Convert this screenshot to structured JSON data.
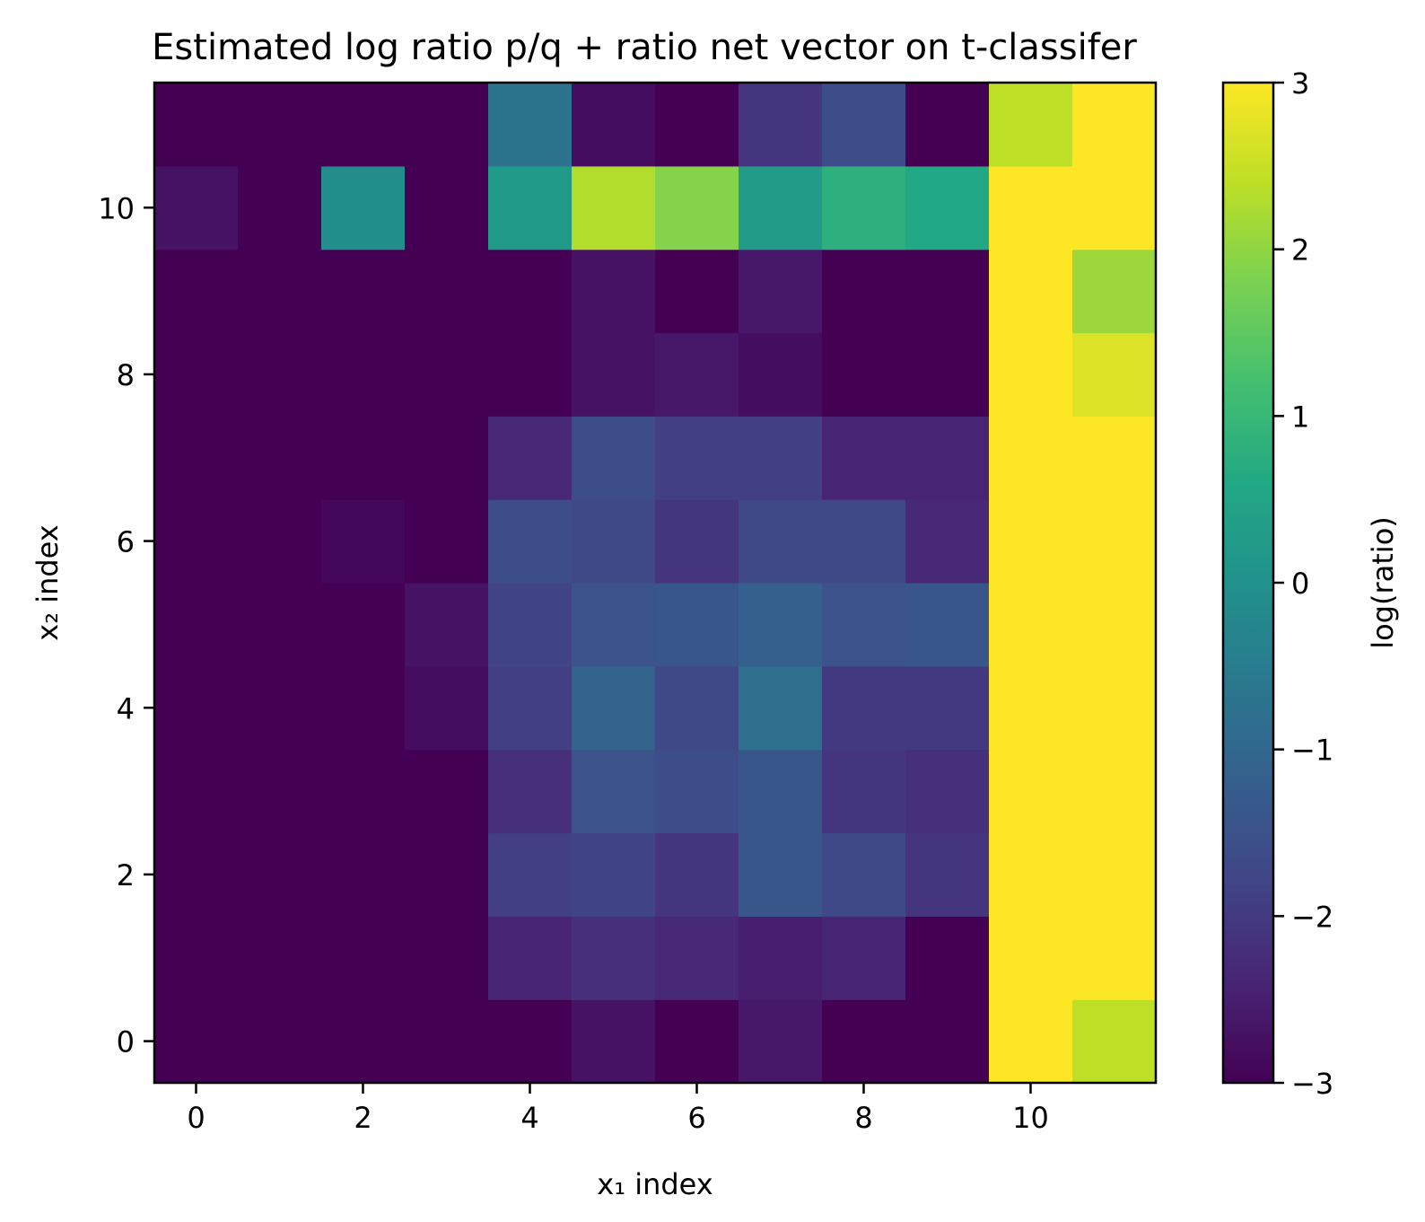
{
  "chart_data": {
    "type": "heatmap",
    "title": "Estimated log ratio p/q + ratio net vector on t-classifer",
    "xlabel": "x₁ index",
    "ylabel": "x₂ index",
    "colorbar_label": "log(ratio)",
    "colormap": "viridis",
    "vmin": -3,
    "vmax": 3,
    "x": [
      0,
      1,
      2,
      3,
      4,
      5,
      6,
      7,
      8,
      9,
      10,
      11
    ],
    "y": [
      0,
      1,
      2,
      3,
      4,
      5,
      6,
      7,
      8,
      9,
      10,
      11
    ],
    "xlim": [
      -0.5,
      11.5
    ],
    "ylim": [
      -0.5,
      11.5
    ],
    "x_ticks": [
      0,
      2,
      4,
      6,
      8,
      10
    ],
    "y_ticks": [
      0,
      2,
      4,
      6,
      8,
      10
    ],
    "colorbar_ticks": [
      -3,
      -2,
      -1,
      0,
      1,
      2,
      3
    ],
    "colorbar_tick_labels": [
      "−3",
      "−2",
      "−1",
      "0",
      "1",
      "2",
      "3"
    ],
    "z": [
      [
        -3,
        -3,
        -3,
        -3,
        -3,
        -2.7,
        -3,
        -2.6,
        -3,
        -3,
        3,
        2.4
      ],
      [
        -3,
        -3,
        -3,
        -3,
        -2.4,
        -2.2,
        -2.3,
        -2.5,
        -2.4,
        -3,
        3,
        3
      ],
      [
        -3,
        -3,
        -3,
        -3,
        -1.9,
        -1.8,
        -2.1,
        -1.4,
        -1.7,
        -2.1,
        3,
        3
      ],
      [
        -3,
        -3,
        -3,
        -3,
        -2.2,
        -1.5,
        -1.6,
        -1.4,
        -2.1,
        -2.2,
        3,
        3
      ],
      [
        -3,
        -3,
        -3,
        -2.8,
        -1.9,
        -1.1,
        -1.7,
        -0.8,
        -2.0,
        -2.0,
        3,
        3
      ],
      [
        -3,
        -3,
        -3,
        -2.7,
        -1.8,
        -1.5,
        -1.4,
        -1.2,
        -1.5,
        -1.4,
        3,
        3
      ],
      [
        -3,
        -3,
        -2.9,
        -3,
        -1.6,
        -1.7,
        -2.1,
        -1.7,
        -1.7,
        -2.3,
        3,
        3
      ],
      [
        -3,
        -3,
        -3,
        -3,
        -2.3,
        -1.6,
        -1.9,
        -1.9,
        -2.4,
        -2.4,
        3,
        3
      ],
      [
        -3,
        -3,
        -3,
        -3,
        -3,
        -2.7,
        -2.6,
        -2.8,
        -3,
        -3,
        3,
        2.7
      ],
      [
        -3,
        -3,
        -3,
        -3,
        -3,
        -2.7,
        -3,
        -2.6,
        -3,
        -3,
        3,
        2.1
      ],
      [
        -2.7,
        -3,
        -0.1,
        -3,
        0.2,
        2.3,
        1.9,
        0.3,
        0.8,
        0.6,
        3,
        3
      ],
      [
        -3,
        -3,
        -3,
        -3,
        -0.7,
        -2.8,
        -3,
        -2.1,
        -1.6,
        -3,
        2.4,
        3
      ]
    ]
  }
}
